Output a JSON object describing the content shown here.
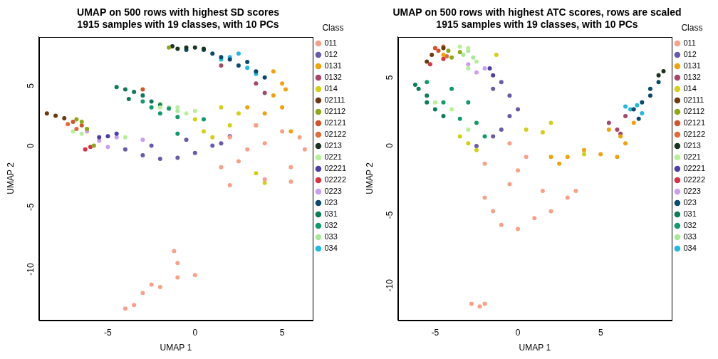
{
  "chart_data": [
    {
      "type": "scatter",
      "title": [
        "UMAP on 500 rows with highest SD scores",
        "1915 samples with 19 classes, with 10 PCs"
      ],
      "x_label": "UMAP 1",
      "y_label": "UMAP 2",
      "legend_title": "Class",
      "legend": "right",
      "grid": false,
      "marker": "circle",
      "xlim": [
        -8.95,
        6.75
      ],
      "ylim": [
        -14.75,
        8.9
      ],
      "xticks": [
        -5,
        0,
        5
      ],
      "yticks": [
        -10,
        -5,
        0,
        5
      ],
      "series": [
        {
          "name": "011",
          "color": "#F8A18A",
          "values": [
            [
              2,
              0.5
            ],
            [
              3,
              -0.5
            ],
            [
              4,
              0
            ],
            [
              5,
              1
            ],
            [
              6,
              0.5
            ],
            [
              6.3,
              -0.5
            ],
            [
              5.5,
              -2
            ],
            [
              4,
              -3
            ],
            [
              1.5,
              -2
            ],
            [
              2.5,
              -1.5
            ],
            [
              3.5,
              1.5
            ],
            [
              5.5,
              -3.2
            ],
            [
              2,
              -3.5
            ],
            [
              -4,
              -13.8
            ],
            [
              -3.5,
              -13.5
            ],
            [
              -3,
              -12.5
            ],
            [
              -2,
              -12
            ],
            [
              -1,
              -11.2
            ],
            [
              -1.2,
              -9
            ],
            [
              0,
              -11
            ],
            [
              -2.5,
              -11.8
            ],
            [
              -1,
              -10
            ]
          ]
        },
        {
          "name": "012",
          "color": "#6A5AAA",
          "values": [
            [
              -4,
              -0.5
            ],
            [
              -3,
              -1
            ],
            [
              -2,
              -1.3
            ],
            [
              -1,
              -1.2
            ],
            [
              0,
              -0.8
            ],
            [
              1,
              -0.2
            ],
            [
              1.5,
              0
            ],
            [
              -2.5,
              -0.2
            ],
            [
              -0.5,
              0.3
            ],
            [
              2,
              0.6
            ]
          ]
        },
        {
          "name": "0131",
          "color": "#F0A30A",
          "values": [
            [
              4.5,
              6
            ],
            [
              5,
              5
            ],
            [
              4.5,
              4
            ],
            [
              5,
              3
            ],
            [
              4,
              2.5
            ],
            [
              3.5,
              1.5
            ],
            [
              5.5,
              1
            ],
            [
              3,
              3
            ],
            [
              5.2,
              4.5
            ]
          ]
        },
        {
          "name": "0132",
          "color": "#A8456A",
          "values": [
            [
              3.5,
              5
            ],
            [
              4,
              4.2
            ],
            [
              1.5,
              6.5
            ]
          ]
        },
        {
          "name": "014",
          "color": "#D4D016",
          "values": [
            [
              0,
              2
            ],
            [
              0.5,
              1
            ],
            [
              1.5,
              3
            ],
            [
              2,
              1.5
            ],
            [
              2.5,
              2.5
            ],
            [
              1,
              0.5
            ],
            [
              3.5,
              -2.5
            ],
            [
              4,
              -3.3
            ]
          ]
        },
        {
          "name": "02111",
          "color": "#6B3A10",
          "values": [
            [
              -8.5,
              2.5
            ],
            [
              -8,
              2.3
            ],
            [
              -7.5,
              2.1
            ]
          ]
        },
        {
          "name": "02112",
          "color": "#8FA81A",
          "values": [
            [
              -6.8,
              2
            ],
            [
              -6.5,
              1.8
            ],
            [
              -6.2,
              1.2
            ],
            [
              -1.5,
              8
            ],
            [
              -5.8,
              -0.2
            ]
          ]
        },
        {
          "name": "02121",
          "color": "#D2552A",
          "values": [
            [
              -7,
              1.8
            ],
            [
              -6.5,
              1.5
            ],
            [
              -3,
              4.5
            ]
          ]
        },
        {
          "name": "02122",
          "color": "#E06A3A",
          "values": [
            [
              -7.3,
              1.6
            ],
            [
              -6.8,
              1.2
            ]
          ]
        },
        {
          "name": "0213",
          "color": "#1A3320",
          "values": [
            [
              -1.3,
              8.1
            ],
            [
              -1,
              7.9
            ],
            [
              -0.5,
              8
            ],
            [
              0,
              8
            ],
            [
              0.5,
              7.9
            ]
          ]
        },
        {
          "name": "0221",
          "color": "#B8F09A",
          "values": [
            [
              -7,
              1
            ],
            [
              -6.5,
              0.8
            ],
            [
              -2,
              3
            ],
            [
              -1,
              3
            ],
            [
              0,
              2.7
            ],
            [
              -0.5,
              2.5
            ],
            [
              -4,
              0.5
            ]
          ]
        },
        {
          "name": "02221",
          "color": "#4B3FA6",
          "values": [
            [
              -5.5,
              0.5
            ],
            [
              -5,
              0.6
            ],
            [
              -4.5,
              0.8
            ]
          ]
        },
        {
          "name": "02222",
          "color": "#D63345",
          "values": [
            [
              -6,
              -0.3
            ],
            [
              -6.3,
              -0.5
            ]
          ]
        },
        {
          "name": "0223",
          "color": "#C9A0F0",
          "values": [
            [
              -5.5,
              0.2
            ],
            [
              -5,
              -0.3
            ],
            [
              -4.5,
              0.5
            ],
            [
              -3,
              0.3
            ],
            [
              -6.2,
              1
            ]
          ]
        },
        {
          "name": "023",
          "color": "#0A4A6A",
          "values": [
            [
              0.5,
              7.8
            ],
            [
              1,
              7.5
            ],
            [
              1.5,
              7.2
            ],
            [
              2,
              7
            ],
            [
              2.5,
              6.5
            ],
            [
              3,
              6.8
            ],
            [
              3.5,
              6
            ],
            [
              4,
              5.5
            ],
            [
              -0.5,
              7.8
            ]
          ]
        },
        {
          "name": "031",
          "color": "#0E7A5A",
          "values": [
            [
              -4.5,
              4.7
            ],
            [
              -4,
              4.5
            ],
            [
              -3.5,
              4.3
            ],
            [
              -3,
              4
            ],
            [
              -2.5,
              3.5
            ],
            [
              -2,
              3.2
            ],
            [
              -3.8,
              3.7
            ]
          ]
        },
        {
          "name": "032",
          "color": "#139A6A",
          "values": [
            [
              -3,
              3.5
            ],
            [
              -2.5,
              3
            ],
            [
              -1.5,
              2.9
            ],
            [
              -1,
              2.2
            ],
            [
              -2,
              2.5
            ],
            [
              -1,
              0.8
            ],
            [
              0.5,
              2
            ]
          ]
        },
        {
          "name": "033",
          "color": "#A8E89A",
          "values": [
            [
              -2,
              3.3
            ],
            [
              -1,
              2.7
            ],
            [
              -1.5,
              3
            ]
          ]
        },
        {
          "name": "034",
          "color": "#22B8E0",
          "values": [
            [
              1.5,
              7
            ],
            [
              2,
              7.2
            ],
            [
              3,
              6.3
            ],
            [
              3.5,
              5.8
            ],
            [
              2.5,
              7.5
            ]
          ]
        }
      ]
    },
    {
      "type": "scatter",
      "title": [
        "UMAP on 500 rows with highest ATC scores, rows are scaled",
        "1915 samples with 19 classes, with 10 PCs"
      ],
      "x_label": "UMAP 1",
      "y_label": "UMAP 2",
      "legend_title": "Class",
      "legend": "right",
      "grid": false,
      "marker": "circle",
      "xlim": [
        -7.24,
        9.29
      ],
      "ylim": [
        -12.99,
        7.83
      ],
      "xticks": [
        -5,
        0,
        5
      ],
      "yticks": [
        -10,
        -5,
        0,
        5
      ],
      "series": [
        {
          "name": "011",
          "color": "#F8A18A",
          "values": [
            [
              -1,
              -6
            ],
            [
              0,
              -6.3
            ],
            [
              1,
              -5.5
            ],
            [
              2,
              -5
            ],
            [
              3,
              -4
            ],
            [
              3.5,
              -3.5
            ],
            [
              -2,
              -4
            ],
            [
              -0.5,
              -3
            ],
            [
              0,
              -2
            ],
            [
              0.5,
              -1
            ],
            [
              -0.5,
              0
            ],
            [
              1.5,
              -3.5
            ],
            [
              -1.5,
              -5
            ],
            [
              -2.8,
              -11.8
            ],
            [
              -2.3,
              -12
            ],
            [
              -2,
              -11.8
            ],
            [
              -2,
              -1.5
            ]
          ]
        },
        {
          "name": "012",
          "color": "#6A5AAA",
          "values": [
            [
              -1,
              4.5
            ],
            [
              -0.5,
              3.5
            ],
            [
              -0.5,
              2
            ],
            [
              -1,
              1
            ],
            [
              -1.5,
              0.5
            ],
            [
              -2.5,
              -0.2
            ],
            [
              -1.5,
              4
            ],
            [
              0,
              2.5
            ]
          ]
        },
        {
          "name": "0131",
          "color": "#F0A30A",
          "values": [
            [
              2,
              -1
            ],
            [
              3,
              -1
            ],
            [
              4,
              -0.5
            ],
            [
              5,
              -0.8
            ],
            [
              6,
              -1
            ],
            [
              6.5,
              0
            ],
            [
              5.5,
              1
            ],
            [
              6.2,
              0.5
            ],
            [
              7,
              1.5
            ],
            [
              2.5,
              -1.5
            ],
            [
              -4.5,
              6.5
            ]
          ]
        },
        {
          "name": "0132",
          "color": "#A8456A",
          "values": [
            [
              5.5,
              1.5
            ],
            [
              6,
              1
            ],
            [
              6.5,
              2
            ],
            [
              6.2,
              0.7
            ]
          ]
        },
        {
          "name": "014",
          "color": "#D4D016",
          "values": [
            [
              -3,
              0
            ],
            [
              -2.5,
              -0.5
            ],
            [
              -3.5,
              0.5
            ],
            [
              0.5,
              1
            ],
            [
              2,
              1.5
            ],
            [
              1.5,
              0.8
            ],
            [
              -1.3,
              6.5
            ],
            [
              4,
              -0.8
            ]
          ]
        },
        {
          "name": "02111",
          "color": "#6B3A10",
          "values": [
            [
              -5.5,
              6
            ],
            [
              -5.2,
              6.5
            ],
            [
              -4.5,
              7
            ]
          ]
        },
        {
          "name": "02112",
          "color": "#8FA81A",
          "values": [
            [
              -4.2,
              6.8
            ],
            [
              -3.5,
              6.7
            ],
            [
              -4,
              6.3
            ]
          ]
        },
        {
          "name": "02121",
          "color": "#D2552A",
          "values": [
            [
              -5,
              7
            ],
            [
              -4.8,
              6.8
            ]
          ]
        },
        {
          "name": "02122",
          "color": "#E06A3A",
          "values": [
            [
              -4.5,
              7.1
            ],
            [
              -4.3,
              6.4
            ]
          ]
        },
        {
          "name": "0213",
          "color": "#1A3320",
          "values": [
            [
              8.8,
              5.3
            ],
            [
              8.5,
              5
            ]
          ]
        },
        {
          "name": "0221",
          "color": "#B8F09A",
          "values": [
            [
              -3,
              7
            ],
            [
              -3.5,
              7.1
            ],
            [
              -2.5,
              6
            ],
            [
              -3,
              5.5
            ],
            [
              -4,
              2.5
            ],
            [
              -3,
              1
            ],
            [
              -5,
              3
            ]
          ]
        },
        {
          "name": "02221",
          "color": "#4B3FA6",
          "values": [
            [
              -1.7,
              5.5
            ],
            [
              -1.5,
              5
            ]
          ]
        },
        {
          "name": "02222",
          "color": "#D63345",
          "values": [
            [
              -4.5,
              6.2
            ],
            [
              -5.3,
              5.8
            ]
          ]
        },
        {
          "name": "0223",
          "color": "#C9A0F0",
          "values": [
            [
              -2,
              5.5
            ],
            [
              -2.5,
              5.2
            ],
            [
              -3,
              5.8
            ]
          ]
        },
        {
          "name": "023",
          "color": "#0A4A6A",
          "values": [
            [
              7,
              2.5
            ],
            [
              7.5,
              3
            ],
            [
              8,
              3.5
            ],
            [
              8.5,
              4.5
            ],
            [
              8,
              4
            ],
            [
              7.3,
              1.8
            ]
          ]
        },
        {
          "name": "031",
          "color": "#0E7A5A",
          "values": [
            [
              -6,
              4
            ],
            [
              -5.5,
              3.5
            ],
            [
              -5,
              2.5
            ],
            [
              -5.5,
              3
            ],
            [
              -4.5,
              2
            ],
            [
              -6.2,
              4.3
            ]
          ]
        },
        {
          "name": "032",
          "color": "#139A6A",
          "values": [
            [
              -5.5,
              4.5
            ],
            [
              -4,
              4
            ],
            [
              -3,
              3
            ],
            [
              -2.5,
              1.5
            ],
            [
              -4.5,
              3
            ],
            [
              -3.5,
              1.8
            ],
            [
              -2,
              0.5
            ]
          ]
        },
        {
          "name": "033",
          "color": "#A8E89A",
          "values": [
            [
              -3,
              6.8
            ],
            [
              -2.7,
              6.3
            ],
            [
              -3.3,
              6.5
            ]
          ]
        },
        {
          "name": "034",
          "color": "#22B8E0",
          "values": [
            [
              6.8,
              2.5
            ],
            [
              7.2,
              2.8
            ],
            [
              7.5,
              2.2
            ],
            [
              6.5,
              2.7
            ]
          ]
        }
      ]
    }
  ]
}
